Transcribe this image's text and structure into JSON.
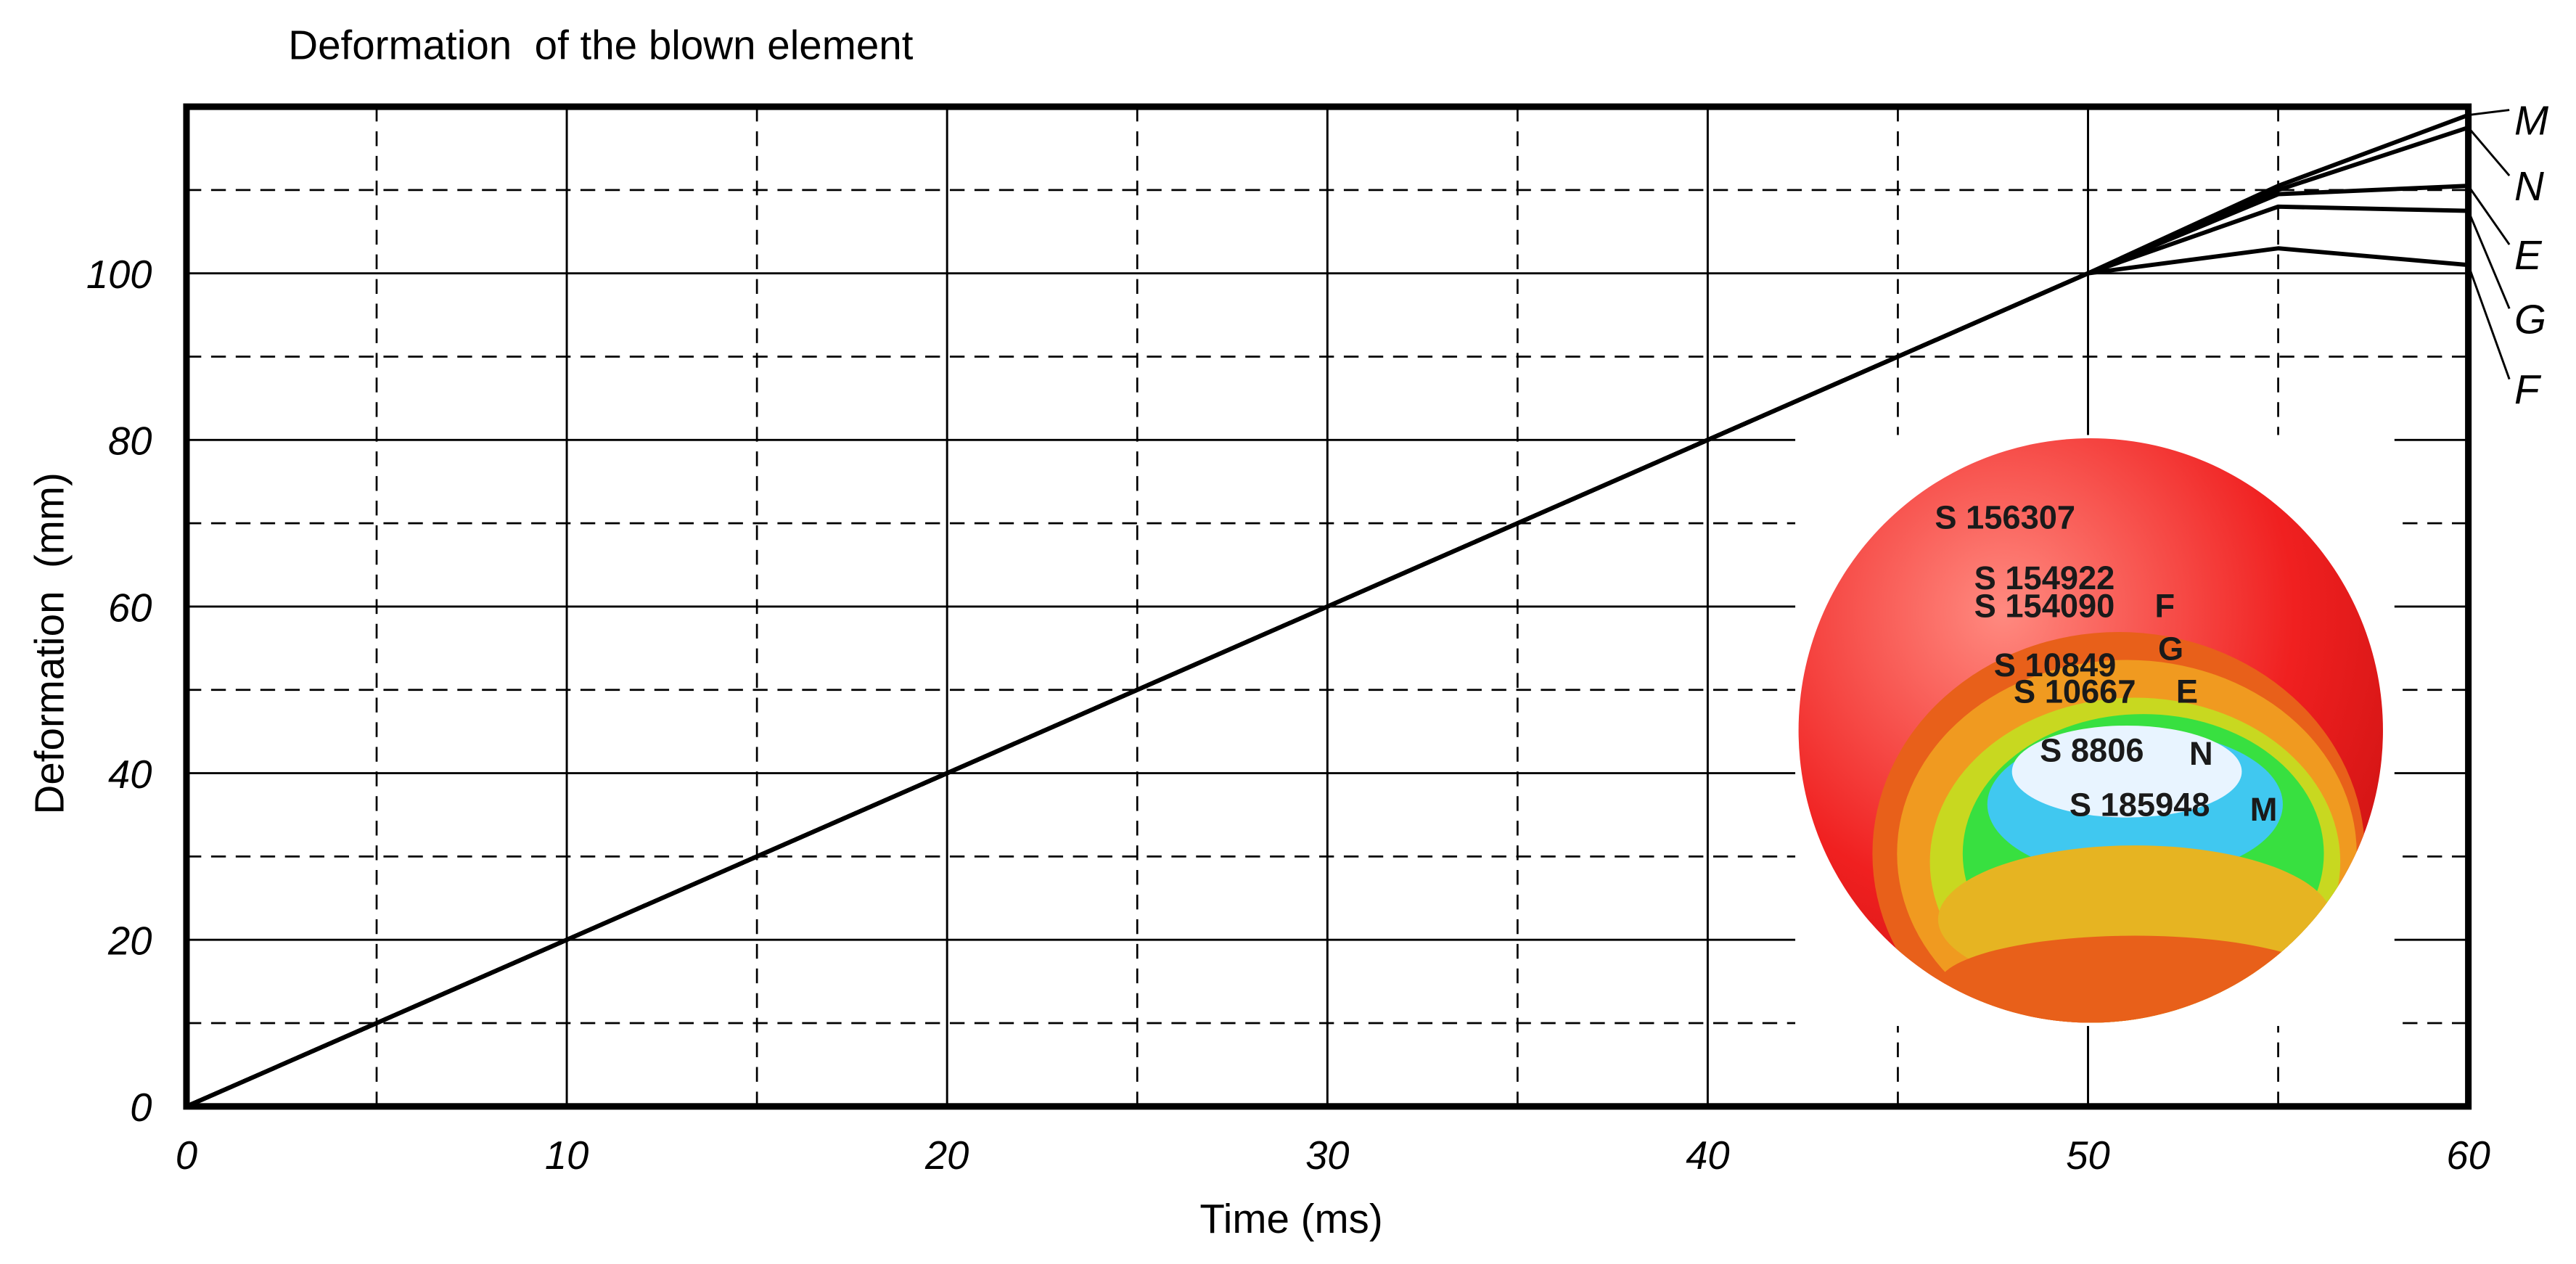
{
  "chart_data": {
    "type": "line",
    "title": "Deformation  of the blown element",
    "x_label": "Time (ms)",
    "y_label": "Deformation  (mm)",
    "x": [
      0,
      50,
      55,
      60
    ],
    "series": [
      {
        "name": "M",
        "color": "#000000",
        "values": [
          0,
          100,
          110.5,
          119
        ]
      },
      {
        "name": "N",
        "color": "#000000",
        "values": [
          0,
          100,
          110,
          117.5
        ]
      },
      {
        "name": "E",
        "color": "#000000",
        "values": [
          0,
          100,
          109.5,
          110.5
        ]
      },
      {
        "name": "G",
        "color": "#000000",
        "values": [
          0,
          100,
          108,
          107.5
        ]
      },
      {
        "name": "F",
        "color": "#000000",
        "values": [
          0,
          100,
          103,
          101
        ]
      }
    ],
    "xlim": [
      0,
      60
    ],
    "ylim": [
      0,
      120
    ],
    "xticks": [
      0,
      10,
      20,
      30,
      40,
      50,
      60
    ],
    "yticks": [
      0,
      20,
      40,
      60,
      80,
      100
    ],
    "x_minor_grid": [
      5,
      15,
      25,
      35,
      45,
      55
    ],
    "y_minor_grid": [
      10,
      30,
      50,
      70,
      90,
      110
    ],
    "grid": true,
    "inset": {
      "labels": [
        "S 156307",
        "S 154922",
        "S 154090",
        "F",
        "S 10849",
        "G",
        "S 10667",
        "E",
        "S 8806",
        "N",
        "S 185948",
        "M"
      ]
    }
  }
}
